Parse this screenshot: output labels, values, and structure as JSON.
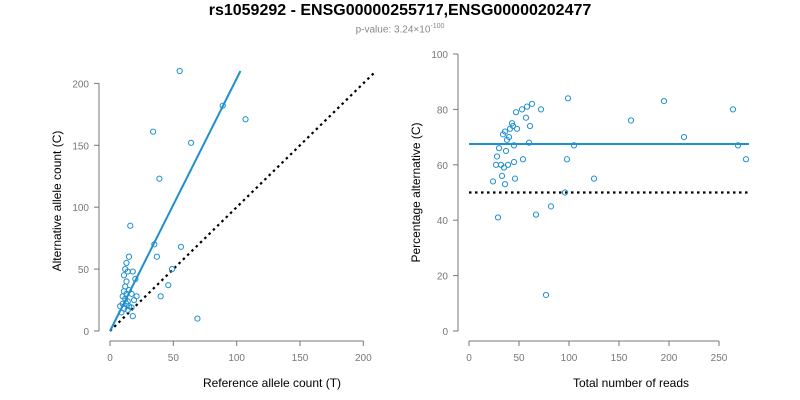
{
  "title": "rs1059292 - ENSG00000255717,ENSG00000202477",
  "subtitle": {
    "prefix": "p-value: 3.24×10",
    "exponent": "-100"
  },
  "colors": {
    "points": "#1f8fd0",
    "fit_line": "#1f8fd0",
    "reference_line": "#000000",
    "axis": "#777777"
  },
  "chart_data": [
    {
      "type": "scatter",
      "xlabel": "Reference allele count (T)",
      "ylabel": "Alternative allele count (C)",
      "xlim": [
        0,
        210
      ],
      "ylim": [
        0,
        210
      ],
      "xticks": [
        0,
        50,
        100,
        150,
        200
      ],
      "yticks": [
        0,
        50,
        100,
        150,
        200
      ],
      "points": [
        [
          8,
          20
        ],
        [
          9,
          15
        ],
        [
          10,
          22
        ],
        [
          10,
          28
        ],
        [
          11,
          18
        ],
        [
          11,
          32
        ],
        [
          11,
          45
        ],
        [
          12,
          26
        ],
        [
          12,
          36
        ],
        [
          12,
          50
        ],
        [
          13,
          22
        ],
        [
          13,
          30
        ],
        [
          13,
          40
        ],
        [
          13,
          55
        ],
        [
          14,
          17
        ],
        [
          14,
          24
        ],
        [
          14,
          48
        ],
        [
          15,
          20
        ],
        [
          15,
          33
        ],
        [
          15,
          60
        ],
        [
          16,
          85
        ],
        [
          17,
          19
        ],
        [
          17,
          30
        ],
        [
          18,
          12
        ],
        [
          18,
          48
        ],
        [
          19,
          25
        ],
        [
          20,
          42
        ],
        [
          21,
          28
        ],
        [
          34,
          161
        ],
        [
          35,
          70
        ],
        [
          37,
          60
        ],
        [
          39,
          123
        ],
        [
          40,
          28
        ],
        [
          46,
          37
        ],
        [
          49,
          50
        ],
        [
          55,
          210
        ],
        [
          56,
          68
        ],
        [
          64,
          152
        ],
        [
          69,
          10
        ],
        [
          89,
          182
        ],
        [
          107,
          171
        ]
      ],
      "fit_line": [
        [
          0,
          0
        ],
        [
          103,
          210
        ]
      ],
      "reference_line": [
        [
          0,
          0
        ],
        [
          210,
          210
        ]
      ]
    },
    {
      "type": "scatter",
      "xlabel": "Total number of reads",
      "ylabel": "Percentage alternative (C)",
      "xlim": [
        0,
        280
      ],
      "ylim": [
        0,
        100
      ],
      "xticks": [
        0,
        50,
        100,
        150,
        200,
        250
      ],
      "yticks": [
        0,
        20,
        40,
        60,
        80,
        100
      ],
      "points": [
        [
          24,
          54
        ],
        [
          27,
          60
        ],
        [
          28,
          63
        ],
        [
          29,
          41
        ],
        [
          30,
          66
        ],
        [
          32,
          60
        ],
        [
          33,
          56
        ],
        [
          34,
          71
        ],
        [
          35,
          59
        ],
        [
          36,
          72
        ],
        [
          36,
          53
        ],
        [
          37,
          65
        ],
        [
          38,
          69
        ],
        [
          39,
          60
        ],
        [
          40,
          70
        ],
        [
          41,
          73
        ],
        [
          43,
          75
        ],
        [
          44,
          74
        ],
        [
          45,
          67
        ],
        [
          45,
          61
        ],
        [
          46,
          55
        ],
        [
          47,
          79
        ],
        [
          48,
          73
        ],
        [
          53,
          80
        ],
        [
          54,
          62
        ],
        [
          57,
          77
        ],
        [
          58,
          81
        ],
        [
          60,
          68
        ],
        [
          61,
          74
        ],
        [
          63,
          82
        ],
        [
          67,
          42
        ],
        [
          72,
          80
        ],
        [
          77,
          13
        ],
        [
          82,
          45
        ],
        [
          96,
          50
        ],
        [
          98,
          62
        ],
        [
          99,
          84
        ],
        [
          105,
          67
        ],
        [
          125,
          55
        ],
        [
          162,
          76
        ],
        [
          195,
          83
        ],
        [
          215,
          70
        ],
        [
          264,
          80
        ],
        [
          269,
          67
        ],
        [
          277,
          62
        ]
      ],
      "fit_line": [
        [
          0,
          67.5
        ],
        [
          280,
          67.5
        ]
      ],
      "reference_line": [
        [
          0,
          50
        ],
        [
          280,
          50
        ]
      ]
    }
  ]
}
